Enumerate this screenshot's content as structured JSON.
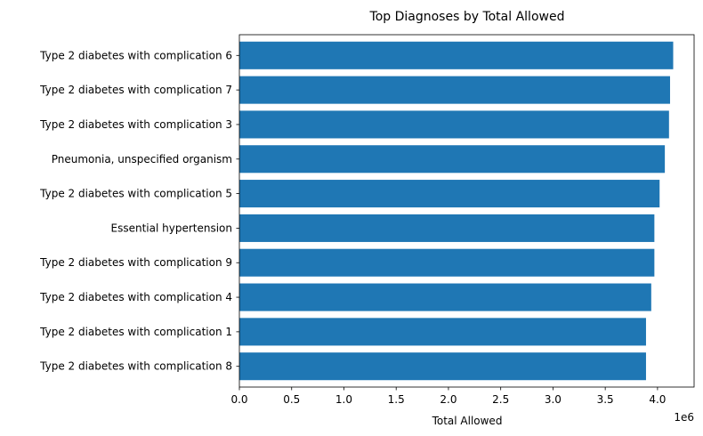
{
  "chart_data": {
    "type": "bar",
    "orientation": "horizontal",
    "title": "Top Diagnoses by Total Allowed",
    "xlabel": "Total Allowed",
    "ylabel": "",
    "x_scale_label": "1e6",
    "xlim": [
      0,
      4.35
    ],
    "x_ticks": [
      "0.0",
      "0.5",
      "1.0",
      "1.5",
      "2.0",
      "2.5",
      "3.0",
      "3.5",
      "4.0"
    ],
    "x_tick_values": [
      0,
      0.5,
      1.0,
      1.5,
      2.0,
      2.5,
      3.0,
      3.5,
      4.0
    ],
    "grid": false,
    "bar_color": "#1f77b4",
    "categories": [
      "Type 2 diabetes with complication 6",
      "Type 2 diabetes with complication 7",
      "Type 2 diabetes with complication 3",
      "Pneumonia, unspecified organism",
      "Type 2 diabetes with complication 5",
      "Essential hypertension",
      "Type 2 diabetes with complication 9",
      "Type 2 diabetes with complication 4",
      "Type 2 diabetes with complication 1",
      "Type 2 diabetes with complication 8"
    ],
    "values": [
      4.15,
      4.12,
      4.11,
      4.07,
      4.02,
      3.97,
      3.97,
      3.94,
      3.89,
      3.89
    ]
  }
}
